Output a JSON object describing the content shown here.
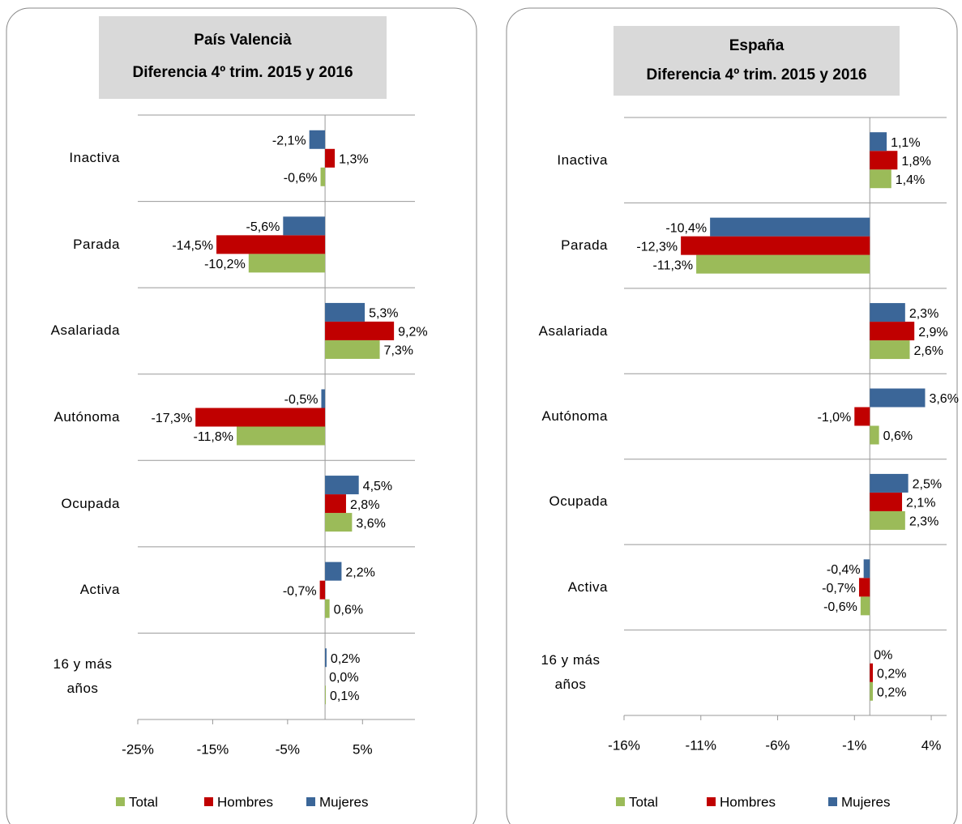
{
  "chart_data": [
    {
      "type": "barh",
      "title": "País Valencià",
      "subtitle": "Diferencia 4º trim. 2015 y 2016",
      "categories": [
        "Inactiva",
        "Parada",
        "Asalariada",
        "Autónoma",
        "Ocupada",
        "Activa",
        "16 y más años"
      ],
      "series": [
        {
          "name": "Total",
          "color": "#9bbb59",
          "values": [
            -0.6,
            -10.2,
            7.3,
            -11.8,
            3.6,
            0.6,
            0.1
          ],
          "value_labels": [
            "-0,6%",
            "-10,2%",
            "7,3%",
            "-11,8%",
            "3,6%",
            "0,6%",
            "0,1%"
          ]
        },
        {
          "name": "Hombres",
          "color": "#c00000",
          "values": [
            1.3,
            -14.5,
            9.2,
            -17.3,
            2.8,
            -0.7,
            0.0
          ],
          "value_labels": [
            "1,3%",
            "-14,5%",
            "9,2%",
            "-17,3%",
            "2,8%",
            "-0,7%",
            "0,0%"
          ]
        },
        {
          "name": "Mujeres",
          "color": "#3b6698",
          "values": [
            -2.1,
            -5.6,
            5.3,
            -0.5,
            4.5,
            2.2,
            0.2
          ],
          "value_labels": [
            "-2,1%",
            "-5,6%",
            "5,3%",
            "-0,5%",
            "4,5%",
            "2,2%",
            "0,2%"
          ]
        }
      ],
      "xlim": [
        -25,
        12
      ],
      "xticks": [
        {
          "value": -25,
          "label": "-25%"
        },
        {
          "value": -15,
          "label": "-15%"
        },
        {
          "value": -5,
          "label": "-5%"
        },
        {
          "value": 5,
          "label": "5%"
        }
      ],
      "legend": "bottom"
    },
    {
      "type": "barh",
      "title": "España",
      "subtitle": "Diferencia 4º trim. 2015 y 2016",
      "categories": [
        "Inactiva",
        "Parada",
        "Asalariada",
        "Autónoma",
        "Ocupada",
        "Activa",
        "16 y más años"
      ],
      "series": [
        {
          "name": "Total",
          "color": "#9bbb59",
          "values": [
            1.4,
            -11.3,
            2.6,
            0.6,
            2.3,
            -0.6,
            0.2
          ],
          "value_labels": [
            "1,4%",
            "-11,3%",
            "2,6%",
            "0,6%",
            "2,3%",
            "-0,6%",
            "0,2%"
          ]
        },
        {
          "name": "Hombres",
          "color": "#c00000",
          "values": [
            1.8,
            -12.3,
            2.9,
            -1.0,
            2.1,
            -0.7,
            0.2
          ],
          "value_labels": [
            "1,8%",
            "-12,3%",
            "2,9%",
            "-1,0%",
            "2,1%",
            "-0,7%",
            "0,2%"
          ]
        },
        {
          "name": "Mujeres",
          "color": "#3b6698",
          "values": [
            1.1,
            -10.4,
            2.3,
            3.6,
            2.5,
            -0.4,
            0
          ],
          "value_labels": [
            "1,1%",
            "-10,4%",
            "2,3%",
            "3,6%",
            "2,5%",
            "-0,4%",
            "0%"
          ]
        }
      ],
      "xlim": [
        -16,
        5
      ],
      "xticks": [
        {
          "value": -16,
          "label": "-16%"
        },
        {
          "value": -11,
          "label": "-11%"
        },
        {
          "value": -6,
          "label": "-6%"
        },
        {
          "value": -1,
          "label": "-1%"
        },
        {
          "value": 4,
          "label": "4%"
        }
      ],
      "legend": "bottom"
    }
  ]
}
